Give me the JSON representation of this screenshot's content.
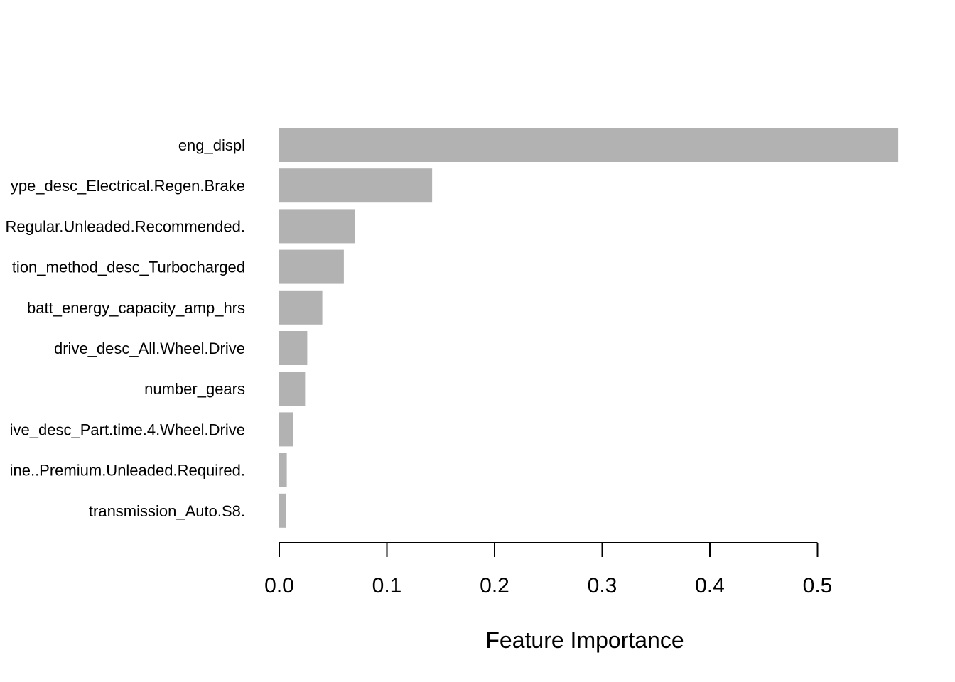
{
  "colors": {
    "bar": "#b2b2b2",
    "axis": "#000000",
    "background": "#ffffff"
  },
  "chart_data": {
    "type": "bar",
    "orientation": "horizontal",
    "title": "",
    "xlabel": "Feature Importance",
    "ylabel": "",
    "xlim": [
      0,
      0.575
    ],
    "xticks": [
      0.0,
      0.1,
      0.2,
      0.3,
      0.4,
      0.5
    ],
    "xtick_labels": [
      "0.0",
      "0.1",
      "0.2",
      "0.3",
      "0.4",
      "0.5"
    ],
    "grid": false,
    "categories": [
      "eng_displ",
      "ype_desc_Electrical.Regen.Brake",
      "Regular.Unleaded.Recommended.",
      "tion_method_desc_Turbocharged",
      "batt_energy_capacity_amp_hrs",
      "drive_desc_All.Wheel.Drive",
      "number_gears",
      "ive_desc_Part.time.4.Wheel.Drive",
      "ine..Premium.Unleaded.Required.",
      "transmission_Auto.S8."
    ],
    "values": [
      0.575,
      0.142,
      0.07,
      0.06,
      0.04,
      0.026,
      0.024,
      0.013,
      0.007,
      0.006
    ]
  }
}
